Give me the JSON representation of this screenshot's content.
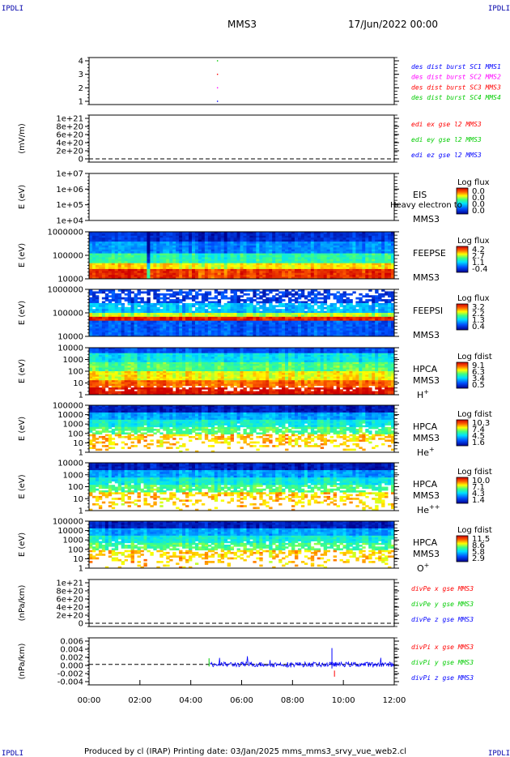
{
  "header": {
    "corner_tl": "IPDLI",
    "corner_tr": "IPDLI",
    "corner_bl": "IPDLI",
    "corner_br": "IPDLI",
    "mission": "MMS3",
    "datetime": "17/Jun/2022 00:00"
  },
  "footer": "Produced by cl (IRAP)   Printing date: 03/Jan/2025   mms_mms3_srvy_vue_web2.cl",
  "colors": {
    "blue": "#0000ff",
    "magenta": "#ff00ff",
    "red": "#ff0000",
    "green": "#00cc00",
    "navy": "#0000aa"
  },
  "chart_data": [
    {
      "id": "burst",
      "type": "scatter",
      "ylabel": "",
      "yticks": [
        "1",
        "2",
        "3",
        "4"
      ],
      "legend": [
        {
          "text": "des dist burst SC1 MMS1",
          "color": "#0000ff"
        },
        {
          "text": "des dist burst SC2 MMS2",
          "color": "#ff00ff"
        },
        {
          "text": "des dist burst SC3 MMS3",
          "color": "#ff0000"
        },
        {
          "text": "des dist burst SC4 MMS4",
          "color": "#00cc00"
        }
      ],
      "points": [
        {
          "x": 5.05,
          "y": 4,
          "color": "#00cc00"
        },
        {
          "x": 5.05,
          "y": 3,
          "color": "#ff0000"
        },
        {
          "x": 5.05,
          "y": 2,
          "color": "#ff00ff"
        },
        {
          "x": 5.05,
          "y": 1,
          "color": "#0000ff"
        }
      ]
    },
    {
      "id": "edi",
      "type": "line",
      "ylabel": "(mV/m)",
      "yticks": [
        "0",
        "2e+20",
        "4e+20",
        "6e+20",
        "8e+20",
        "1e+21"
      ],
      "legend": [
        {
          "text": "edi ex gse l2 MMS3",
          "color": "#ff0000"
        },
        {
          "text": "edi ey gse l2 MMS3",
          "color": "#00cc00"
        },
        {
          "text": "edi ez gse l2 MMS3",
          "color": "#0000ff"
        }
      ]
    },
    {
      "id": "eis",
      "type": "heatmap",
      "ylabel": "E (eV)",
      "yticks": [
        "1e+04",
        "1e+05",
        "1e+06",
        "1e+07"
      ],
      "instrument": [
        "EIS",
        "MMS3"
      ],
      "overlay_text": "Heavy electron to",
      "colorbar": {
        "title": "Log flux",
        "values": [
          "0.0",
          "0.0",
          "0.0",
          "0.0"
        ]
      }
    },
    {
      "id": "feepse",
      "type": "heatmap",
      "ylabel": "E (eV)",
      "yticks": [
        "10000",
        "100000",
        "1000000"
      ],
      "instrument": [
        "FEEPSE",
        "MMS3"
      ],
      "colorbar": {
        "title": "Log flux",
        "values": [
          "4.2",
          "2.7",
          "1.1",
          "-0.4"
        ]
      }
    },
    {
      "id": "feepsi",
      "type": "heatmap",
      "ylabel": "E (eV)",
      "yticks": [
        "10000",
        "100000",
        "1000000"
      ],
      "instrument": [
        "FEEPSI",
        "MMS3"
      ],
      "colorbar": {
        "title": "Log flux",
        "values": [
          "3.2",
          "2.2",
          "1.3",
          "0.4"
        ]
      }
    },
    {
      "id": "hpca_h",
      "type": "heatmap",
      "ylabel": "E (eV)",
      "yticks": [
        "1",
        "10",
        "100",
        "1000",
        "10000"
      ],
      "instrument": [
        "HPCA",
        "MMS3"
      ],
      "species": "H",
      "species_sup": "+",
      "colorbar": {
        "title": "Log fdist",
        "values": [
          "9.1",
          "6.3",
          "3.4",
          "0.5"
        ]
      }
    },
    {
      "id": "hpca_he",
      "type": "heatmap",
      "ylabel": "E (eV)",
      "yticks": [
        "1",
        "10",
        "100",
        "1000",
        "10000",
        "100000"
      ],
      "instrument": [
        "HPCA",
        "MMS3"
      ],
      "species": "He",
      "species_sup": "+",
      "colorbar": {
        "title": "Log fdist",
        "values": [
          "10.3",
          "7.4",
          "4.5",
          "1.6"
        ]
      }
    },
    {
      "id": "hpca_he2",
      "type": "heatmap",
      "ylabel": "E (eV)",
      "yticks": [
        "1",
        "10",
        "100",
        "1000",
        "10000"
      ],
      "instrument": [
        "HPCA",
        "MMS3"
      ],
      "species": "He",
      "species_sup": "++",
      "colorbar": {
        "title": "Log fdist",
        "values": [
          "10.0",
          "7.1",
          "4.3",
          "1.4"
        ]
      }
    },
    {
      "id": "hpca_o",
      "type": "heatmap",
      "ylabel": "E (eV)",
      "yticks": [
        "1",
        "10",
        "100",
        "1000",
        "10000",
        "100000"
      ],
      "instrument": [
        "HPCA",
        "MMS3"
      ],
      "species": "O",
      "species_sup": "+",
      "colorbar": {
        "title": "Log fdist",
        "values": [
          "11.5",
          "8.6",
          "5.8",
          "2.9"
        ]
      }
    },
    {
      "id": "divpe",
      "type": "line",
      "ylabel": "(nPa/km)",
      "yticks": [
        "0",
        "2e+20",
        "4e+20",
        "6e+20",
        "8e+20",
        "1e+21"
      ],
      "legend": [
        {
          "text": "divPe x gse MMS3",
          "color": "#ff0000"
        },
        {
          "text": "divPe y gse MMS3",
          "color": "#00cc00"
        },
        {
          "text": "divPe z gse MMS3",
          "color": "#0000ff"
        }
      ]
    },
    {
      "id": "divpi",
      "type": "line",
      "ylabel": "(nPa/km)",
      "yticks": [
        "-0.004",
        "-0.002",
        "0.000",
        "0.002",
        "0.004",
        "0.006"
      ],
      "ylim": [
        -0.005,
        0.0065
      ],
      "data_start_hour": 4.75,
      "legend": [
        {
          "text": "divPi x gse MMS3",
          "color": "#ff0000"
        },
        {
          "text": "divPi y gse MMS3",
          "color": "#00cc00"
        },
        {
          "text": "divPi z gse MMS3",
          "color": "#0000ff"
        }
      ]
    }
  ],
  "xaxis": {
    "labels": [
      "00:00",
      "02:00",
      "04:00",
      "06:00",
      "08:00",
      "10:00",
      "12:00"
    ],
    "range_hours": [
      0,
      12
    ]
  }
}
